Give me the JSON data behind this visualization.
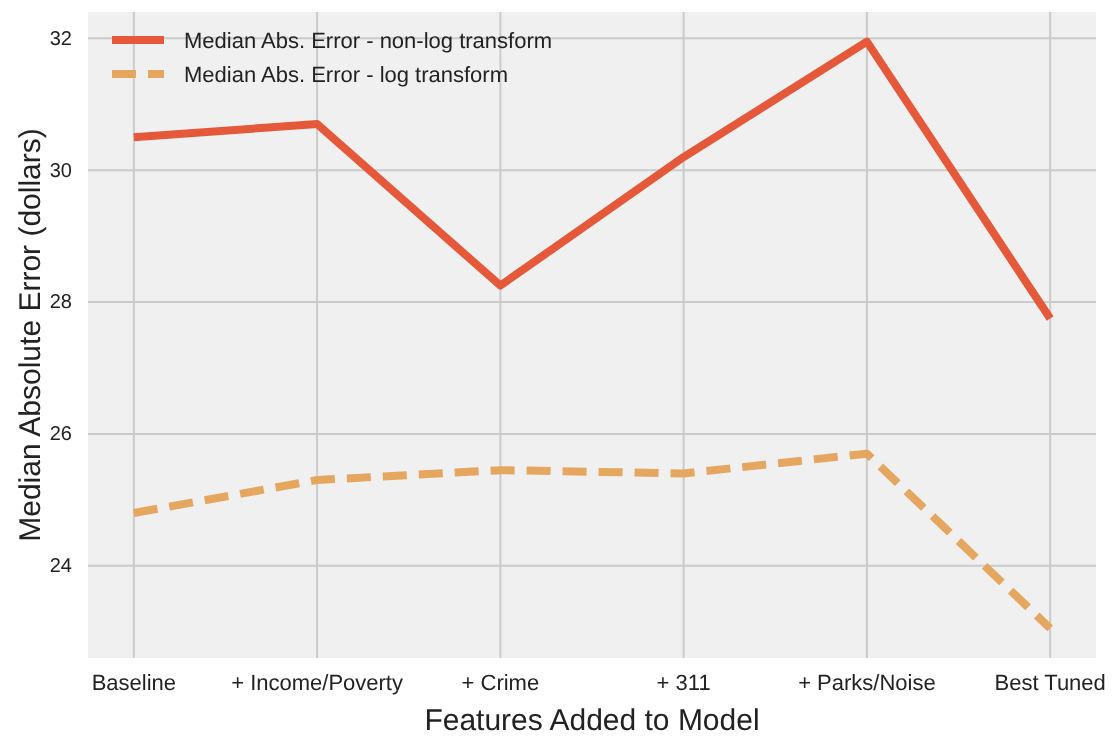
{
  "chart_data": {
    "type": "line",
    "xlabel": "Features Added to Model",
    "ylabel": "Median Absolute Error (dollars)",
    "categories": [
      "Baseline",
      "+ Income/Poverty",
      "+ Crime",
      "+ 311",
      "+ Parks/Noise",
      "Best Tuned"
    ],
    "series": [
      {
        "name": "Median Abs. Error - non-log transform",
        "color": "#e5583a",
        "line_style": "solid",
        "values": [
          30.5,
          30.7,
          28.25,
          30.2,
          31.95,
          27.75
        ]
      },
      {
        "name": "Median Abs. Error - log transform",
        "color": "#e5a65f",
        "line_style": "dashed",
        "values": [
          24.8,
          25.3,
          25.45,
          25.4,
          25.7,
          23.05
        ]
      }
    ],
    "ylim": [
      22.6,
      32.4
    ],
    "yticks": [
      24,
      26,
      28,
      30,
      32
    ],
    "grid": true,
    "legend": "top left",
    "marker": "none"
  }
}
